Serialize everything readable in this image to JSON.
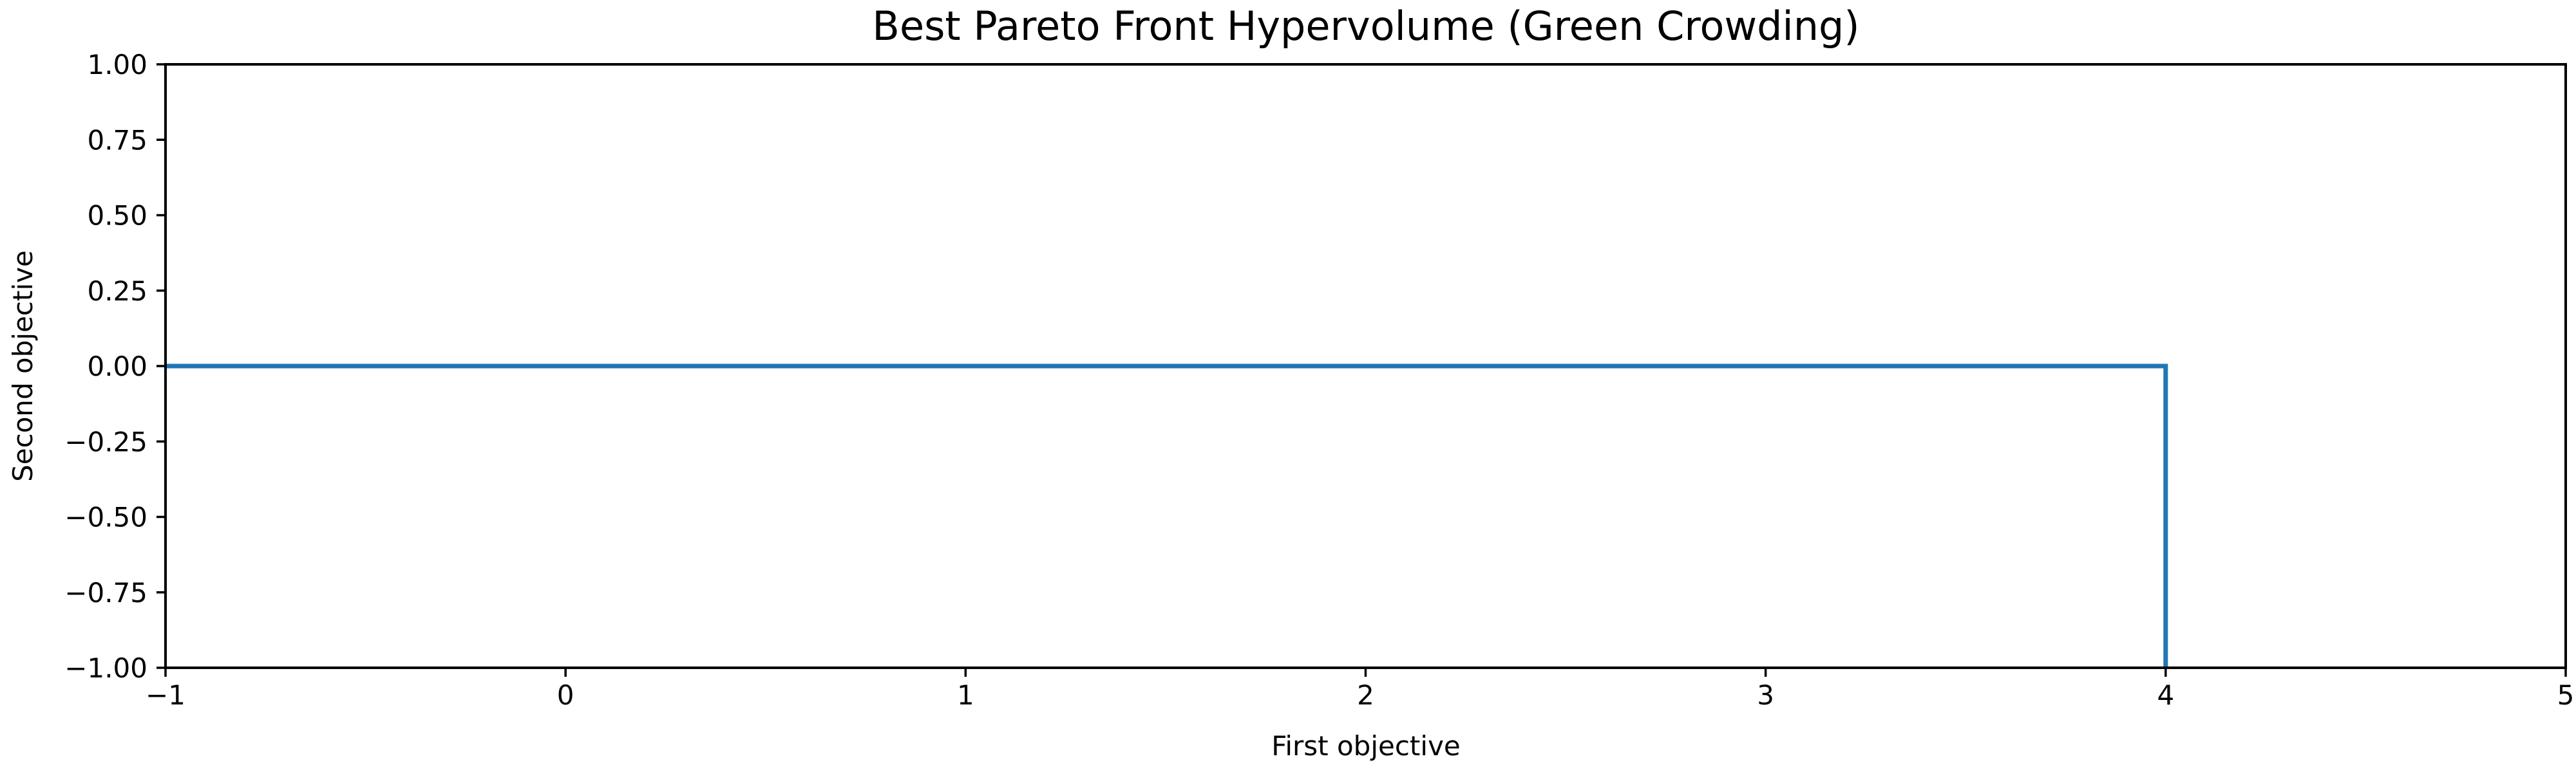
{
  "chart_data": {
    "type": "line",
    "title": "Best Pareto Front Hypervolume (Green Crowding)",
    "xlabel": "First objective",
    "ylabel": "Second objective",
    "xlim": [
      -1,
      5
    ],
    "ylim": [
      -1,
      1
    ],
    "x_ticks": [
      -1,
      0,
      1,
      2,
      3,
      4,
      5
    ],
    "x_tick_labels": [
      "−1",
      "0",
      "1",
      "2",
      "3",
      "4",
      "5"
    ],
    "y_ticks": [
      1.0,
      0.75,
      0.5,
      0.25,
      0.0,
      -0.25,
      -0.5,
      -0.75,
      -1.0
    ],
    "y_tick_labels": [
      "1.00",
      "0.75",
      "0.50",
      "0.25",
      "0.00",
      "−0.25",
      "−0.50",
      "−0.75",
      "−1.00"
    ],
    "grid": false,
    "series": [
      {
        "color": "#1f77b4",
        "x": [
          -1,
          4,
          4
        ],
        "y": [
          0,
          0,
          -1
        ]
      }
    ]
  }
}
